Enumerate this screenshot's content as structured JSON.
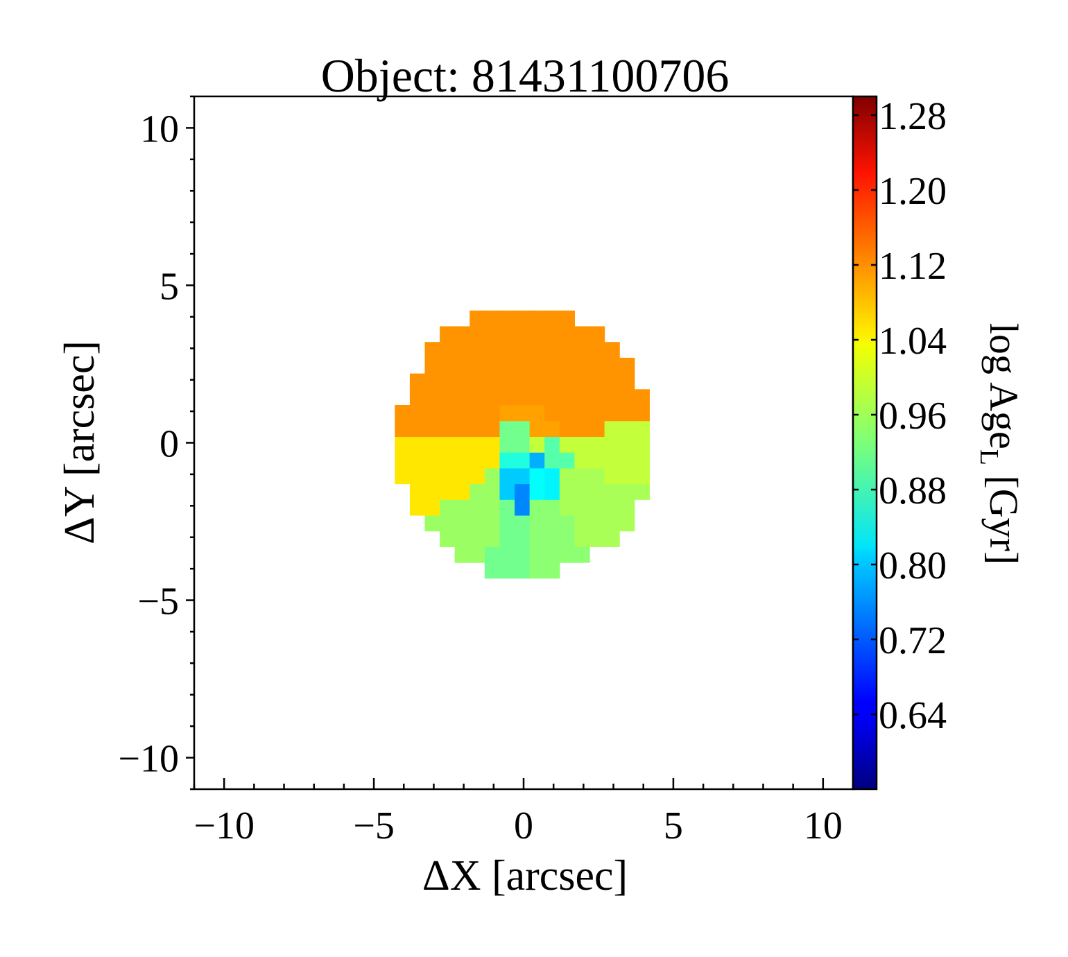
{
  "chart_data": {
    "type": "heatmap",
    "title": "Object: 81431100706",
    "xlabel": "ΔX [arcsec]",
    "ylabel": "ΔY [arcsec]",
    "xlim": [
      -11,
      11
    ],
    "ylim": [
      -11,
      11
    ],
    "x_ticks": [
      -10,
      -5,
      0,
      5,
      10
    ],
    "y_ticks": [
      -10,
      -5,
      0,
      5,
      10
    ],
    "x_tick_labels": [
      "−10",
      "−5",
      "0",
      "5",
      "10"
    ],
    "y_tick_labels": [
      "−10",
      "−5",
      "0",
      "5",
      "10"
    ],
    "x_minor_step": 1,
    "y_minor_step": 1,
    "grid": false,
    "colormap": "jet",
    "colorbar": {
      "label_main": "log Age",
      "label_sub": "L",
      "label_unit": " [Gyr]",
      "range": [
        0.56,
        1.3
      ],
      "ticks": [
        0.64,
        0.72,
        0.8,
        0.88,
        0.96,
        1.04,
        1.12,
        1.2,
        1.28
      ],
      "tick_labels": [
        "0.64",
        "0.72",
        "0.80",
        "0.88",
        "0.96",
        "1.04",
        "1.12",
        "1.20",
        "1.28"
      ]
    },
    "map": {
      "center": [
        0.0,
        0.0
      ],
      "pixel_size": 0.5,
      "radius_x": 4.3,
      "radius_y": 4.3,
      "y_limits": [
        -4.3,
        4.4
      ],
      "outer_bins": [
        {
          "from_deg": 10,
          "to_deg": 90,
          "value": 1.1
        },
        {
          "from_deg": 90,
          "to_deg": 178,
          "value": 1.1
        },
        {
          "from_deg": 178,
          "to_deg": 218,
          "value": 1.04
        },
        {
          "from_deg": 218,
          "to_deg": 252,
          "value": 0.95
        },
        {
          "from_deg": 252,
          "to_deg": 270,
          "value": 0.92
        },
        {
          "from_deg": 270,
          "to_deg": 300,
          "value": 0.94
        },
        {
          "from_deg": 300,
          "to_deg": 340,
          "value": 0.96
        },
        {
          "from_deg": 340,
          "to_deg": 370,
          "value": 0.98
        }
      ],
      "inner_bins": [
        {
          "x": -0.4,
          "y": 0.9,
          "value": 1.09
        },
        {
          "x": 0.5,
          "y": 0.5,
          "value": 1.09
        },
        {
          "x": -0.2,
          "y": 0.2,
          "value": 0.92
        },
        {
          "x": 1.0,
          "y": -0.4,
          "value": 0.9
        },
        {
          "x": -0.4,
          "y": -0.6,
          "value": 0.86
        },
        {
          "x": 0.3,
          "y": -1.2,
          "value": 0.84
        },
        {
          "x": -0.3,
          "y": -1.3,
          "value": 0.8
        },
        {
          "x": 0.9,
          "y": -1.2,
          "value": 0.83
        },
        {
          "x": 0.5,
          "y": -0.7,
          "value": 0.78
        },
        {
          "x": 0.0,
          "y": -1.6,
          "value": 0.75
        }
      ]
    }
  }
}
